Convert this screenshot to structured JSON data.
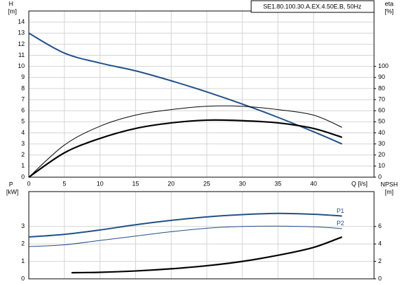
{
  "chart_data": [
    {
      "type": "line",
      "title": "SE1.80.100.30.A.EX.4.50E.B, 50Hz",
      "y_label": "H",
      "y_unit": "[m]",
      "y2_label": "eta",
      "y2_unit": "[%]",
      "x_label": "Q [l/s]",
      "xlim": [
        0,
        48.5
      ],
      "xticks": [
        0,
        5,
        10,
        15,
        20,
        25,
        30,
        35,
        40
      ],
      "ylim": [
        0,
        15
      ],
      "yticks": [
        0,
        1,
        2,
        3,
        4,
        5,
        6,
        7,
        8,
        9,
        10,
        11,
        12,
        13,
        14
      ],
      "y2lim": [
        0,
        150
      ],
      "y2ticks": [
        0,
        10,
        20,
        30,
        40,
        50,
        60,
        70,
        80,
        90,
        100
      ],
      "grid": true,
      "series": [
        {
          "color": "#1f4e87",
          "width": 2,
          "x": [
            0,
            5,
            10,
            15,
            20,
            25,
            30,
            35,
            40,
            44
          ],
          "values": [
            13,
            11.2,
            10.3,
            9.6,
            8.7,
            7.7,
            6.6,
            5.4,
            4.1,
            3.0
          ]
        },
        {
          "color": "#000000",
          "width": 1,
          "axis": "y2",
          "x": [
            0,
            5,
            10,
            15,
            20,
            25,
            30,
            35,
            40,
            44
          ],
          "values": [
            0,
            29,
            46,
            56,
            61,
            64,
            64,
            61,
            56,
            45
          ]
        },
        {
          "color": "#000000",
          "width": 2.2,
          "axis": "y2",
          "x": [
            0,
            5,
            10,
            15,
            20,
            25,
            30,
            35,
            40,
            44
          ],
          "values": [
            0,
            22,
            35,
            44,
            49,
            51.5,
            51,
            49,
            44,
            36
          ]
        }
      ]
    },
    {
      "type": "line",
      "y_label": "P",
      "y_unit": "[kW]",
      "y2_label": "NPSH",
      "y2_unit": "[m]",
      "xlim": [
        0,
        48.5
      ],
      "xticks": [
        0,
        5,
        10,
        15,
        20,
        25,
        30,
        35,
        40
      ],
      "ylim": [
        0,
        5
      ],
      "yticks": [
        0,
        1,
        2,
        3
      ],
      "y2lim": [
        0,
        10
      ],
      "y2ticks": [
        0,
        2,
        4,
        6
      ],
      "grid": true,
      "series": [
        {
          "name": "P1",
          "color": "#1f4e87",
          "width": 2,
          "x": [
            0,
            5,
            10,
            15,
            20,
            25,
            30,
            35,
            40,
            44
          ],
          "values": [
            2.4,
            2.55,
            2.8,
            3.1,
            3.35,
            3.55,
            3.68,
            3.75,
            3.7,
            3.6
          ]
        },
        {
          "name": "P2",
          "color": "#1f4e87",
          "width": 1,
          "x": [
            0,
            5,
            10,
            15,
            20,
            25,
            30,
            35,
            40,
            44
          ],
          "values": [
            1.85,
            1.95,
            2.2,
            2.45,
            2.7,
            2.9,
            3.0,
            3.02,
            2.98,
            2.88
          ]
        },
        {
          "color": "#000000",
          "width": 2.2,
          "axis": "y2",
          "x": [
            6,
            10,
            15,
            20,
            25,
            30,
            35,
            40,
            44
          ],
          "values": [
            0.7,
            0.75,
            0.9,
            1.15,
            1.5,
            2.0,
            2.7,
            3.6,
            4.8
          ]
        }
      ]
    }
  ]
}
